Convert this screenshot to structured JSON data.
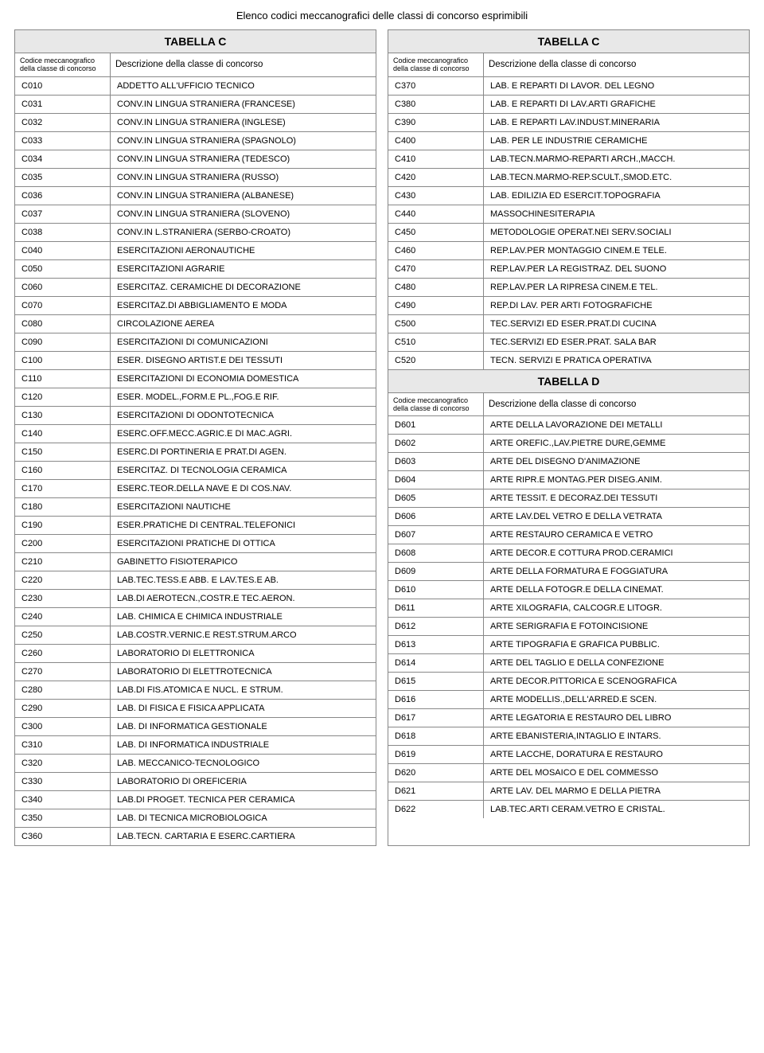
{
  "page_title": "Elenco codici meccanografici delle classi di concorso esprimibili",
  "subheader": {
    "code_line1": "Codice meccanografico",
    "code_line2": "della classe di concorso",
    "desc": "Descrizione della classe di concorso"
  },
  "left": {
    "title": "TABELLA C",
    "rows": [
      {
        "code": "C010",
        "desc": "ADDETTO ALL'UFFICIO TECNICO"
      },
      {
        "code": "C031",
        "desc": "CONV.IN LINGUA STRANIERA (FRANCESE)"
      },
      {
        "code": "C032",
        "desc": "CONV.IN LINGUA STRANIERA (INGLESE)"
      },
      {
        "code": "C033",
        "desc": "CONV.IN LINGUA STRANIERA (SPAGNOLO)"
      },
      {
        "code": "C034",
        "desc": "CONV.IN LINGUA STRANIERA (TEDESCO)"
      },
      {
        "code": "C035",
        "desc": "CONV.IN LINGUA STRANIERA (RUSSO)"
      },
      {
        "code": "C036",
        "desc": "CONV.IN LINGUA STRANIERA (ALBANESE)"
      },
      {
        "code": "C037",
        "desc": "CONV.IN LINGUA STRANIERA (SLOVENO)"
      },
      {
        "code": "C038",
        "desc": "CONV.IN L.STRANIERA (SERBO-CROATO)"
      },
      {
        "code": "C040",
        "desc": "ESERCITAZIONI AERONAUTICHE"
      },
      {
        "code": "C050",
        "desc": "ESERCITAZIONI AGRARIE"
      },
      {
        "code": "C060",
        "desc": "ESERCITAZ. CERAMICHE DI DECORAZIONE"
      },
      {
        "code": "C070",
        "desc": "ESERCITAZ.DI ABBIGLIAMENTO E MODA"
      },
      {
        "code": "C080",
        "desc": "CIRCOLAZIONE AEREA"
      },
      {
        "code": "C090",
        "desc": "ESERCITAZIONI DI COMUNICAZIONI"
      },
      {
        "code": "C100",
        "desc": "ESER. DISEGNO ARTIST.E DEI TESSUTI"
      },
      {
        "code": "C110",
        "desc": "ESERCITAZIONI DI ECONOMIA DOMESTICA"
      },
      {
        "code": "C120",
        "desc": "ESER. MODEL.,FORM.E PL.,FOG.E RIF."
      },
      {
        "code": "C130",
        "desc": "ESERCITAZIONI DI ODONTOTECNICA"
      },
      {
        "code": "C140",
        "desc": "ESERC.OFF.MECC.AGRIC.E DI MAC.AGRI."
      },
      {
        "code": "C150",
        "desc": "ESERC.DI PORTINERIA E PRAT.DI AGEN."
      },
      {
        "code": "C160",
        "desc": "ESERCITAZ. DI TECNOLOGIA CERAMICA"
      },
      {
        "code": "C170",
        "desc": "ESERC.TEOR.DELLA NAVE E DI COS.NAV."
      },
      {
        "code": "C180",
        "desc": "ESERCITAZIONI NAUTICHE"
      },
      {
        "code": "C190",
        "desc": "ESER.PRATICHE DI CENTRAL.TELEFONICI"
      },
      {
        "code": "C200",
        "desc": "ESERCITAZIONI PRATICHE DI OTTICA"
      },
      {
        "code": "C210",
        "desc": "GABINETTO FISIOTERAPICO"
      },
      {
        "code": "C220",
        "desc": "LAB.TEC.TESS.E ABB. E LAV.TES.E AB."
      },
      {
        "code": "C230",
        "desc": "LAB.DI AEROTECN.,COSTR.E TEC.AERON."
      },
      {
        "code": "C240",
        "desc": "LAB. CHIMICA E CHIMICA INDUSTRIALE"
      },
      {
        "code": "C250",
        "desc": "LAB.COSTR.VERNIC.E REST.STRUM.ARCO"
      },
      {
        "code": "C260",
        "desc": "LABORATORIO DI ELETTRONICA"
      },
      {
        "code": "C270",
        "desc": "LABORATORIO DI ELETTROTECNICA"
      },
      {
        "code": "C280",
        "desc": "LAB.DI FIS.ATOMICA E NUCL. E STRUM."
      },
      {
        "code": "C290",
        "desc": "LAB. DI FISICA E FISICA APPLICATA"
      },
      {
        "code": "C300",
        "desc": "LAB. DI INFORMATICA GESTIONALE"
      },
      {
        "code": "C310",
        "desc": "LAB. DI INFORMATICA INDUSTRIALE"
      },
      {
        "code": "C320",
        "desc": "LAB. MECCANICO-TECNOLOGICO"
      },
      {
        "code": "C330",
        "desc": "LABORATORIO DI OREFICERIA"
      },
      {
        "code": "C340",
        "desc": "LAB.DI PROGET. TECNICA PER CERAMICA"
      },
      {
        "code": "C350",
        "desc": "LAB. DI TECNICA MICROBIOLOGICA"
      },
      {
        "code": "C360",
        "desc": "LAB.TECN. CARTARIA E ESERC.CARTIERA"
      }
    ]
  },
  "right": {
    "section1": {
      "title": "TABELLA C",
      "rows": [
        {
          "code": "C370",
          "desc": "LAB. E REPARTI DI LAVOR. DEL LEGNO"
        },
        {
          "code": "C380",
          "desc": "LAB. E REPARTI DI LAV.ARTI GRAFICHE"
        },
        {
          "code": "C390",
          "desc": "LAB. E REPARTI LAV.INDUST.MINERARIA"
        },
        {
          "code": "C400",
          "desc": "LAB. PER LE INDUSTRIE CERAMICHE"
        },
        {
          "code": "C410",
          "desc": "LAB.TECN.MARMO-REPARTI ARCH.,MACCH."
        },
        {
          "code": "C420",
          "desc": "LAB.TECN.MARMO-REP.SCULT.,SMOD.ETC."
        },
        {
          "code": "C430",
          "desc": "LAB. EDILIZIA ED ESERCIT.TOPOGRAFIA"
        },
        {
          "code": "C440",
          "desc": "MASSOCHINESITERAPIA"
        },
        {
          "code": "C450",
          "desc": "METODOLOGIE OPERAT.NEI SERV.SOCIALI"
        },
        {
          "code": "C460",
          "desc": "REP.LAV.PER MONTAGGIO CINEM.E TELE."
        },
        {
          "code": "C470",
          "desc": "REP.LAV.PER LA REGISTRAZ. DEL SUONO"
        },
        {
          "code": "C480",
          "desc": "REP.LAV.PER LA RIPRESA CINEM.E TEL."
        },
        {
          "code": "C490",
          "desc": "REP.DI LAV. PER ARTI FOTOGRAFICHE"
        },
        {
          "code": "C500",
          "desc": "TEC.SERVIZI ED ESER.PRAT.DI CUCINA"
        },
        {
          "code": "C510",
          "desc": "TEC.SERVIZI ED ESER.PRAT. SALA BAR"
        },
        {
          "code": "C520",
          "desc": "TECN. SERVIZI E PRATICA OPERATIVA"
        }
      ]
    },
    "section2": {
      "title": "TABELLA D",
      "rows": [
        {
          "code": "D601",
          "desc": "ARTE DELLA LAVORAZIONE DEI METALLI"
        },
        {
          "code": "D602",
          "desc": "ARTE OREFIC.,LAV.PIETRE DURE,GEMME"
        },
        {
          "code": "D603",
          "desc": "ARTE DEL DISEGNO D'ANIMAZIONE"
        },
        {
          "code": "D604",
          "desc": "ARTE RIPR.E MONTAG.PER DISEG.ANIM."
        },
        {
          "code": "D605",
          "desc": "ARTE TESSIT. E DECORAZ.DEI TESSUTI"
        },
        {
          "code": "D606",
          "desc": "ARTE LAV.DEL VETRO E DELLA VETRATA"
        },
        {
          "code": "D607",
          "desc": "ARTE RESTAURO CERAMICA E VETRO"
        },
        {
          "code": "D608",
          "desc": "ARTE DECOR.E COTTURA PROD.CERAMICI"
        },
        {
          "code": "D609",
          "desc": "ARTE DELLA FORMATURA E FOGGIATURA"
        },
        {
          "code": "D610",
          "desc": "ARTE DELLA FOTOGR.E DELLA CINEMAT."
        },
        {
          "code": "D611",
          "desc": "ARTE XILOGRAFIA, CALCOGR.E LITOGR."
        },
        {
          "code": "D612",
          "desc": "ARTE SERIGRAFIA E FOTOINCISIONE"
        },
        {
          "code": "D613",
          "desc": "ARTE TIPOGRAFIA E GRAFICA PUBBLIC."
        },
        {
          "code": "D614",
          "desc": "ARTE DEL TAGLIO E DELLA CONFEZIONE"
        },
        {
          "code": "D615",
          "desc": "ARTE DECOR.PITTORICA E SCENOGRAFICA"
        },
        {
          "code": "D616",
          "desc": "ARTE MODELLIS.,DELL'ARRED.E SCEN."
        },
        {
          "code": "D617",
          "desc": "ARTE LEGATORIA E RESTAURO DEL LIBRO"
        },
        {
          "code": "D618",
          "desc": "ARTE EBANISTERIA,INTAGLIO E INTARS."
        },
        {
          "code": "D619",
          "desc": "ARTE LACCHE, DORATURA E RESTAURO"
        },
        {
          "code": "D620",
          "desc": "ARTE DEL MOSAICO E DEL COMMESSO"
        },
        {
          "code": "D621",
          "desc": "ARTE LAV. DEL MARMO E DELLA PIETRA"
        },
        {
          "code": "D622",
          "desc": "LAB.TEC.ARTI CERAM.VETRO E CRISTAL."
        }
      ]
    }
  }
}
